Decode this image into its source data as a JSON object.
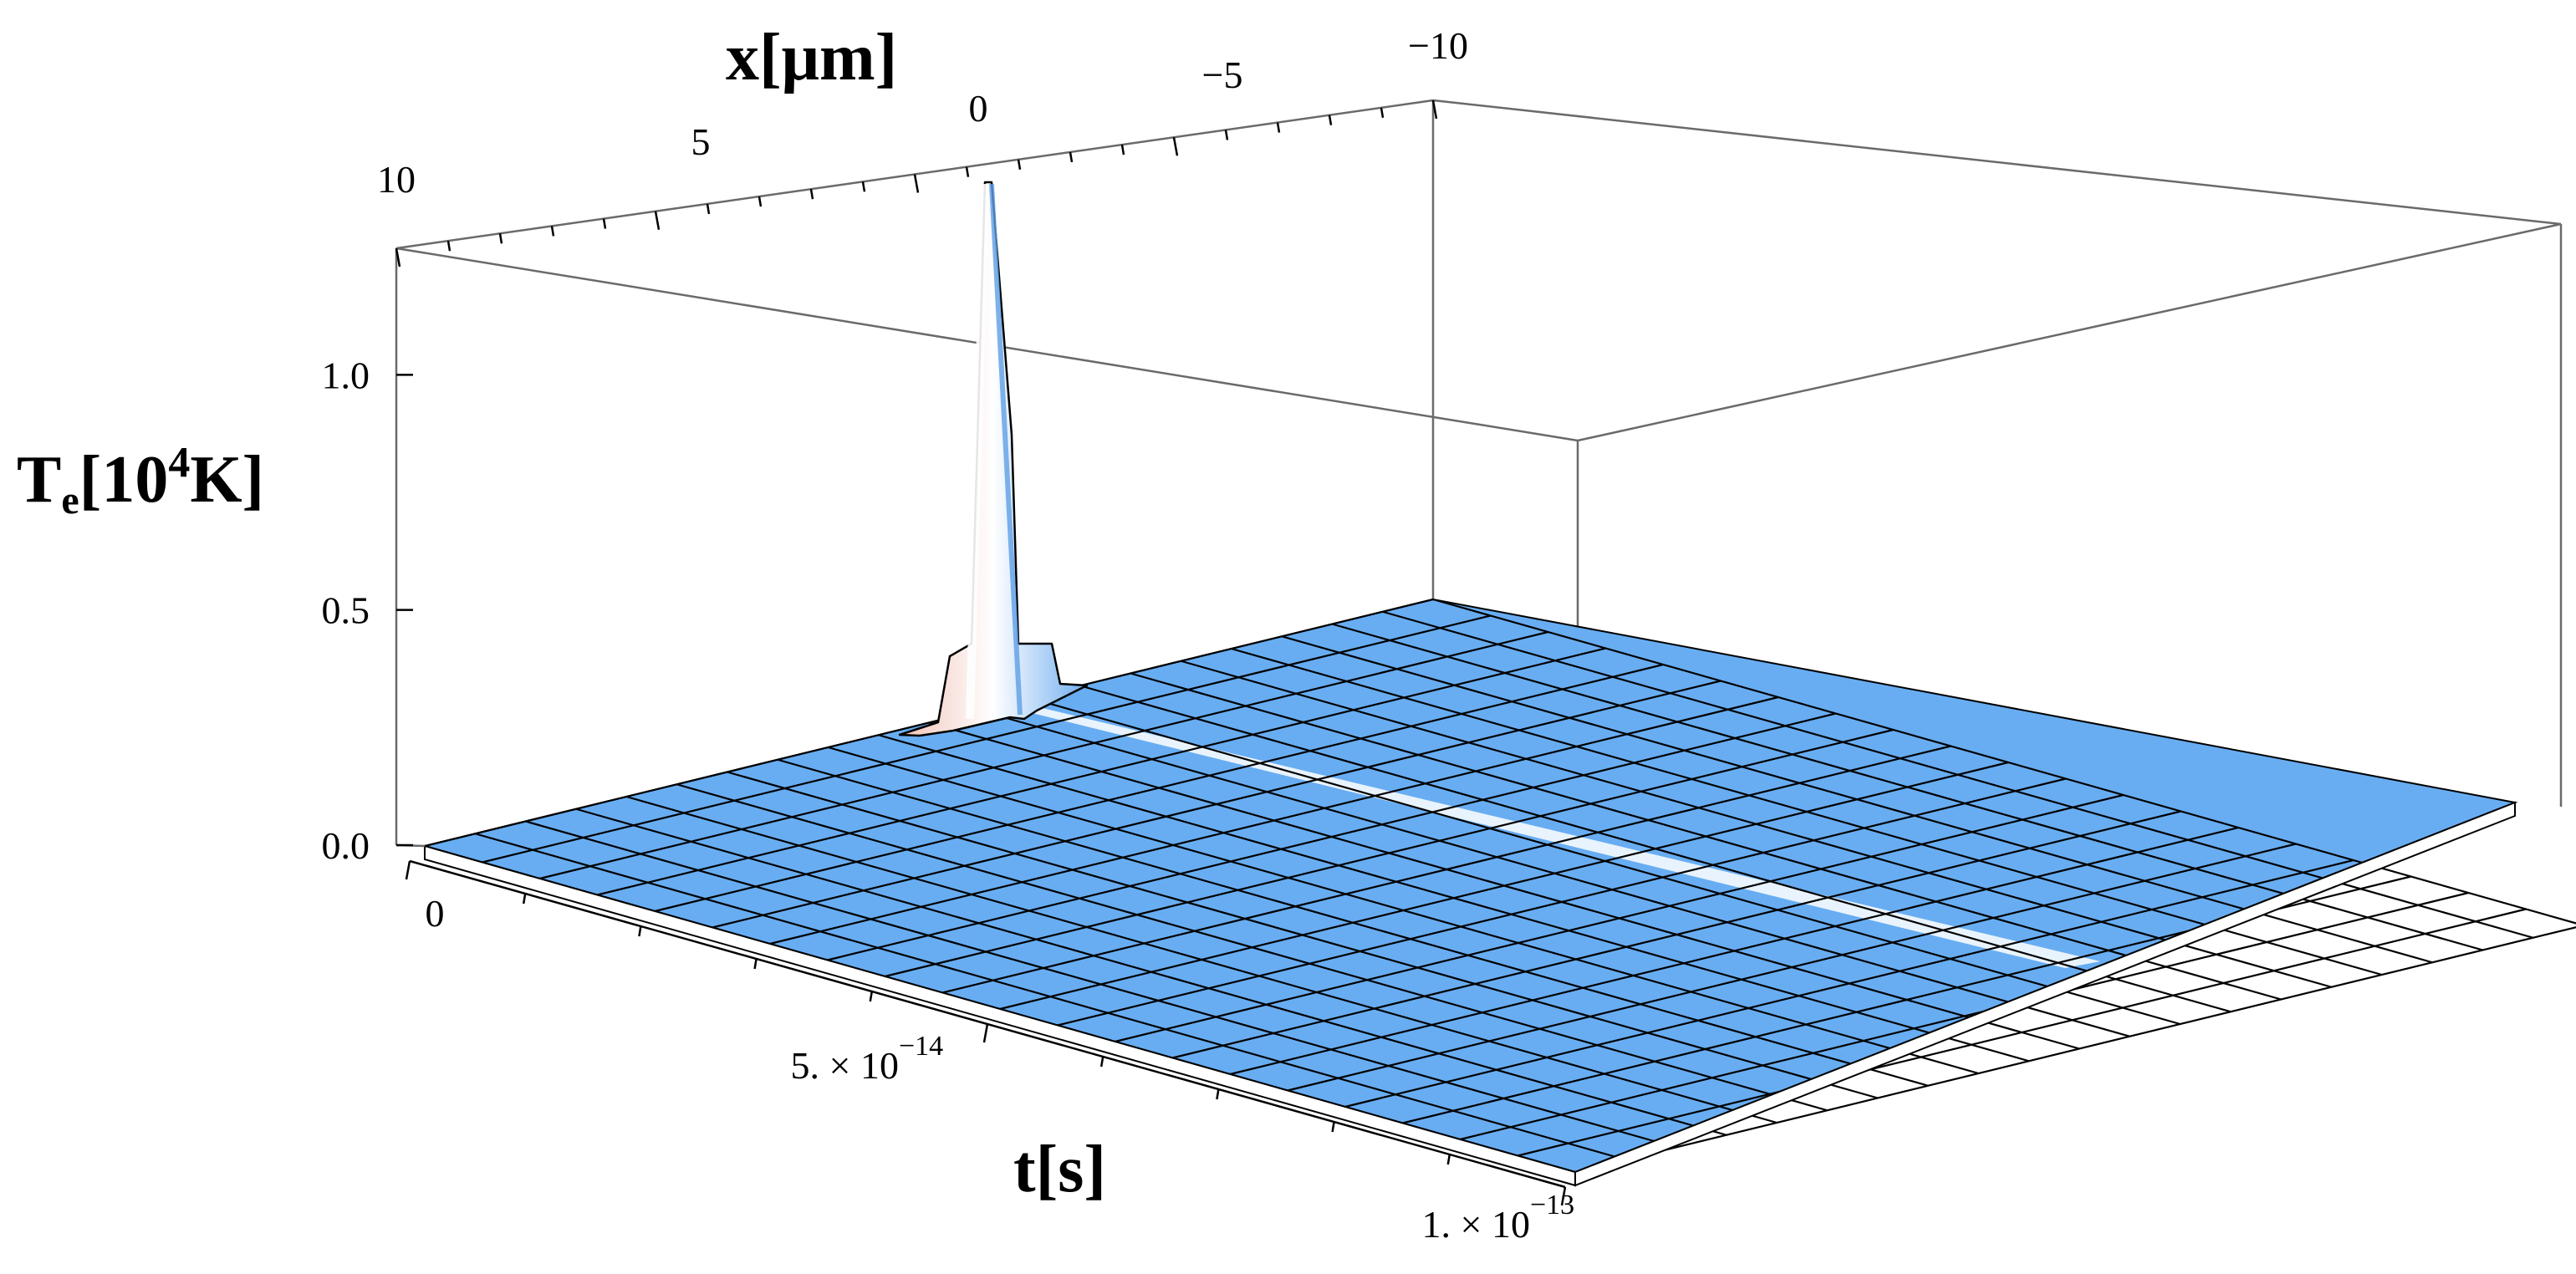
{
  "chart_data": {
    "type": "surface3d",
    "title": "",
    "x_axis": {
      "label": "x[μm]",
      "range": [
        -10,
        10
      ],
      "ticks": [
        {
          "value": 10,
          "label": "10"
        },
        {
          "value": 5,
          "label": "5"
        },
        {
          "value": 0,
          "label": "0"
        },
        {
          "value": -5,
          "label": "−5"
        },
        {
          "value": -10,
          "label": "−10"
        }
      ]
    },
    "t_axis": {
      "label": "t[s]",
      "range": [
        0,
        1e-13
      ],
      "ticks": [
        {
          "value": 0,
          "label": "0"
        },
        {
          "value": 5e-14,
          "label": "5. × 10",
          "exp": "−14"
        },
        {
          "value": 1e-13,
          "label": "1. × 10",
          "exp": "−13"
        }
      ]
    },
    "z_axis": {
      "label_main": "T",
      "label_sub": "e",
      "label_rest": "[10",
      "label_exp": "4",
      "label_unit": "K]",
      "range": [
        0,
        1.25
      ],
      "ticks": [
        {
          "value": 0,
          "label": "0.0"
        },
        {
          "value": 0.5,
          "label": "0.5"
        },
        {
          "value": 1.0,
          "label": "1.0"
        }
      ]
    },
    "surface": {
      "baseline": 0.03,
      "peak": {
        "x": 0,
        "t": 0,
        "value": 1.22
      },
      "shoulder": {
        "x": 0,
        "t": 0,
        "value": 0.36
      },
      "ridge_x": 0,
      "grid_lines": 20,
      "colors": {
        "base": "#68adf2",
        "peak": "#f3c8bf",
        "ridge": "#ffffff",
        "grid": "#000000"
      }
    }
  }
}
